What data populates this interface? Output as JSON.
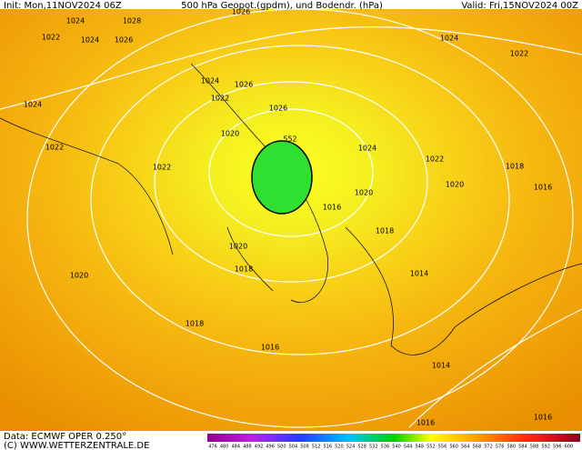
{
  "header": {
    "init": "Init: Mon,11NOV2024 06Z",
    "title": "500 hPa Geopot.(gpdm), und Bodendr. (hPa)",
    "valid": "Valid: Fri,15NOV2024 00Z"
  },
  "isobar_labels": [
    "1024",
    "1028",
    "1022",
    "1024",
    "1026",
    "1026",
    "1024",
    "1022",
    "1024",
    "1026",
    "1022",
    "1024",
    "1026",
    "1020",
    "552",
    "1024",
    "1022",
    "1022",
    "1022",
    "1018",
    "1020",
    "1020",
    "1016",
    "1016",
    "1018",
    "1020",
    "1018",
    "1020",
    "1014",
    "1018",
    "1016",
    "1014",
    "1016",
    "1016"
  ],
  "scale_labels": [
    "476",
    "480",
    "484",
    "488",
    "492",
    "496",
    "500",
    "504",
    "508",
    "512",
    "516",
    "520",
    "524",
    "528",
    "532",
    "536",
    "540",
    "544",
    "548",
    "552",
    "556",
    "560",
    "564",
    "568",
    "572",
    "576",
    "580",
    "584",
    "588",
    "592",
    "596",
    "600"
  ],
  "footer": {
    "data": "Data: ECMWF OPER 0.250°",
    "copyright": "(C) WWW.WETTERZENTRALE.DE"
  }
}
